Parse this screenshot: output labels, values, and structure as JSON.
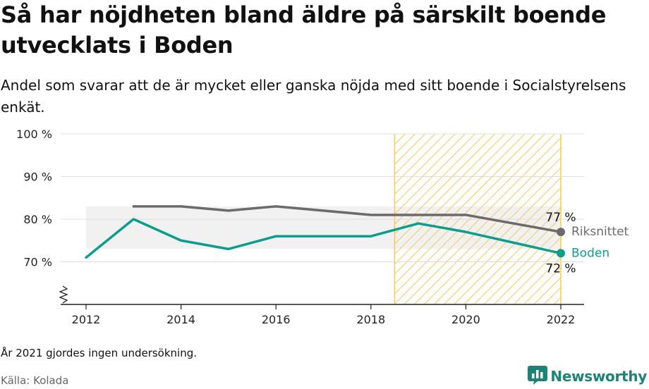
{
  "title": "Så har nöjdheten bland äldre på särskilt boende utvecklats i Boden",
  "subtitle": "Andel som svarar att de är mycket eller ganska nöjda med sitt boende i Socialstyrelsens enkät.",
  "footnote": "År 2021 gjordes ingen undersökning.",
  "source": "Källa: Kolada",
  "brand": {
    "name": "Newsworthy",
    "icon": "newsworthy-logo-icon"
  },
  "colors": {
    "boden": "#0b9e8e",
    "riks": "#6d6a6d",
    "band": "#f1f1f1",
    "hatch": "#f5c95a",
    "grid": "#dddddd"
  },
  "chart_data": {
    "type": "line",
    "x": [
      2012,
      2013,
      2014,
      2015,
      2016,
      2018,
      2019,
      2020,
      2022
    ],
    "series": [
      {
        "name": "Boden",
        "values": [
          71,
          80,
          75,
          73,
          76,
          76,
          79,
          77,
          72
        ],
        "end_label": "72 %"
      },
      {
        "name": "Riksnittet",
        "values": [
          null,
          83,
          83,
          82,
          83,
          81,
          81,
          81,
          77
        ],
        "end_label": "77 %"
      }
    ],
    "series_labels": [
      "Riksnittet",
      "Boden"
    ],
    "y_ticks": [
      {
        "value": 70,
        "label": "70 %"
      },
      {
        "value": 80,
        "label": "80 %"
      },
      {
        "value": 90,
        "label": "90 %"
      },
      {
        "value": 100,
        "label": "100 %"
      }
    ],
    "x_ticks": [
      {
        "value": 2012,
        "label": "2012"
      },
      {
        "value": 2014,
        "label": "2014"
      },
      {
        "value": 2016,
        "label": "2016"
      },
      {
        "value": 2018,
        "label": "2018"
      },
      {
        "value": 2020,
        "label": "2020"
      },
      {
        "value": 2022,
        "label": "2022"
      }
    ],
    "ylim": [
      60,
      100
    ],
    "xlim": [
      2011.5,
      2022.5
    ],
    "axis_break": true,
    "grid": true,
    "highlight_range": [
      2018.5,
      2022
    ],
    "band_range": [
      73,
      83
    ],
    "band_x": [
      2012,
      2022
    ]
  }
}
